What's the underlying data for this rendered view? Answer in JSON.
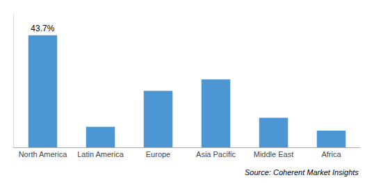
{
  "chart_data": {
    "type": "bar",
    "categories": [
      "North America",
      "Latin America",
      "Europe",
      "Asia Pacific",
      "Middle East",
      "Africa"
    ],
    "values": [
      43.7,
      8.0,
      22.0,
      26.5,
      11.5,
      6.5
    ],
    "value_labels": [
      "43.7%",
      null,
      null,
      null,
      null,
      null
    ],
    "data_labels": true,
    "color": "#4d96d4",
    "ylim": [
      0,
      52
    ],
    "grid": false,
    "tick_labels": "x",
    "annotations": [
      "Source: Coherent Market Insights"
    ]
  }
}
